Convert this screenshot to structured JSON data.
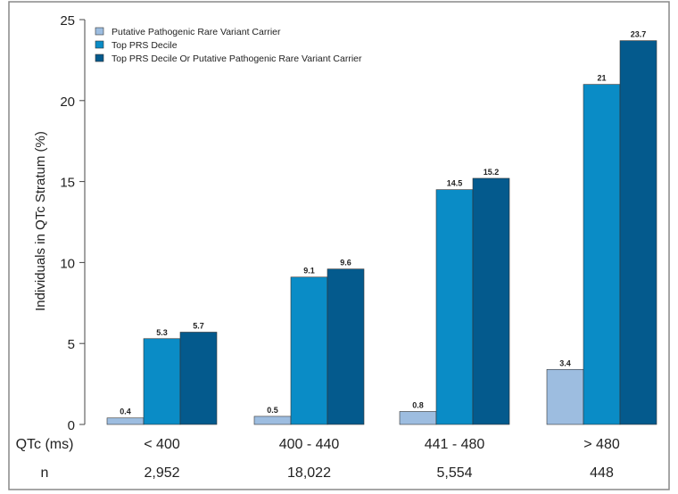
{
  "chart_data": {
    "type": "bar",
    "title": "",
    "ylabel": "Individuals in QTc Stratum (%)",
    "xlabel": "QTc (ms)",
    "ylim": [
      0,
      25
    ],
    "yticks": [
      0,
      5,
      10,
      15,
      20,
      25
    ],
    "categories": [
      "< 400",
      "400 - 440",
      "441 - 480",
      "> 480"
    ],
    "n_label": "n",
    "n_values": [
      "2,952",
      "18,022",
      "5,554",
      "448"
    ],
    "series": [
      {
        "name": "Putative Pathogenic Rare Variant Carrier",
        "color": "#9dbde0",
        "values": [
          0.4,
          0.5,
          0.8,
          3.4
        ]
      },
      {
        "name": "Top PRS Decile",
        "color": "#0a8cc6",
        "values": [
          5.3,
          9.1,
          14.5,
          21
        ]
      },
      {
        "name": "Top PRS Decile Or Putative Pathogenic Rare Variant Carrier",
        "color": "#045a8d",
        "values": [
          5.7,
          9.6,
          15.2,
          23.7
        ]
      }
    ],
    "legend": "top-left",
    "grid": false
  }
}
